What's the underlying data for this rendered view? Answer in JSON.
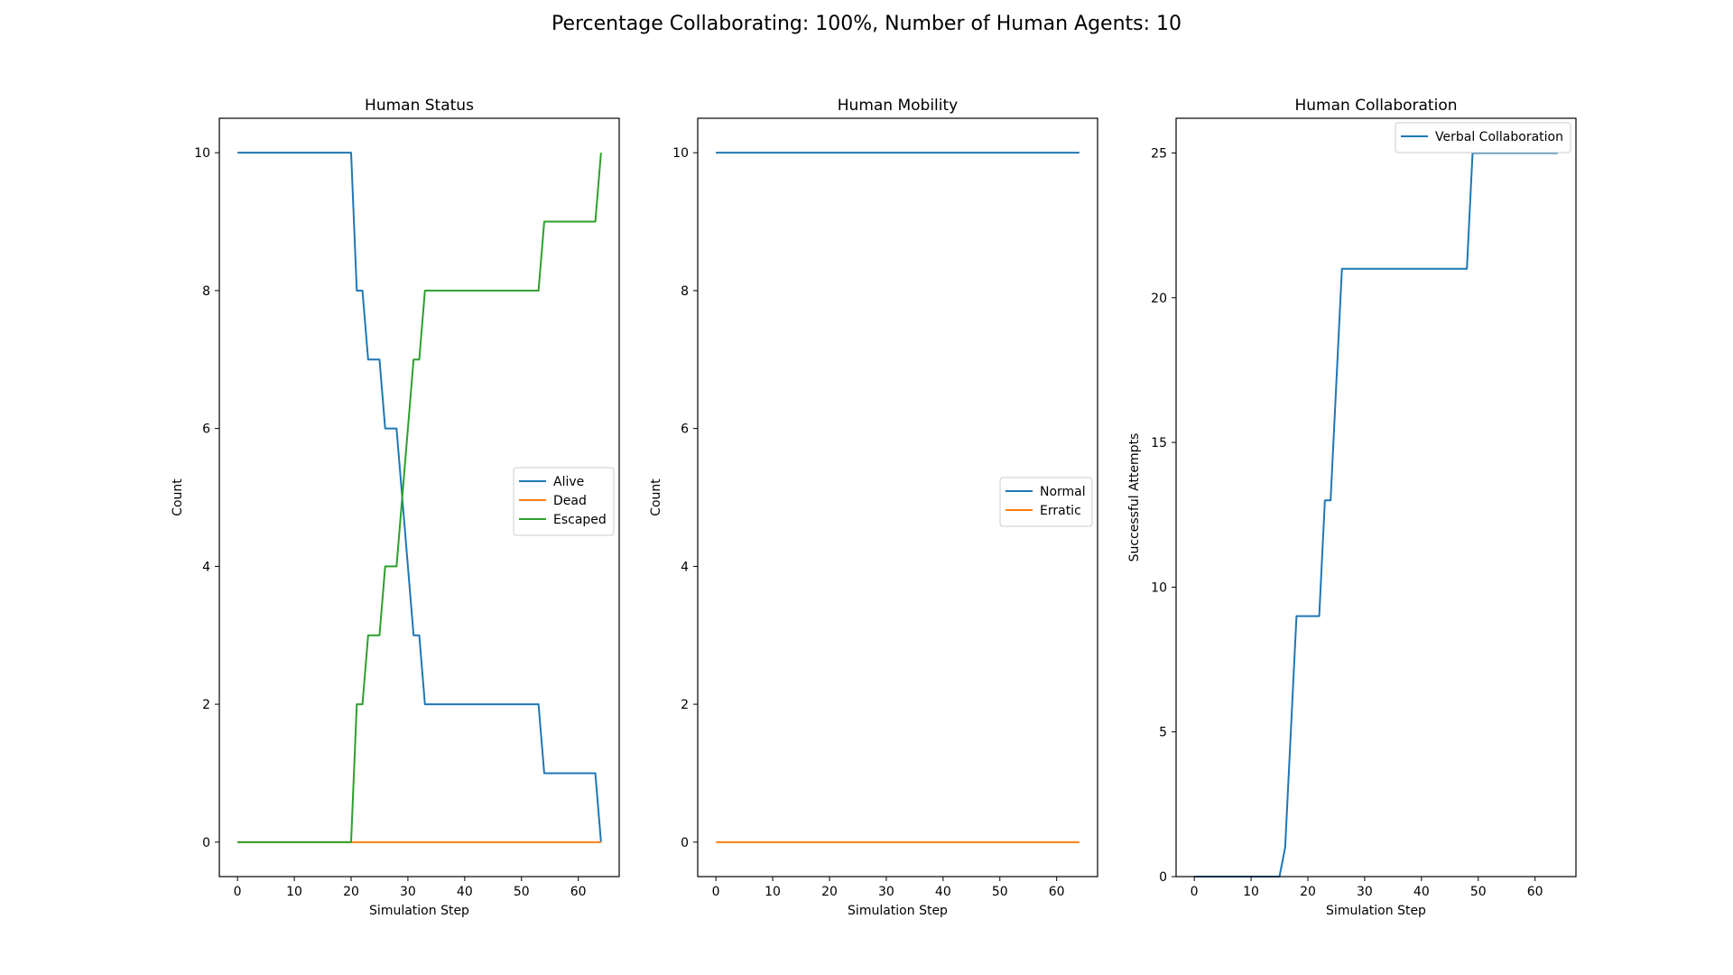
{
  "suptitle": "Percentage Collaborating: 100%, Number of Human Agents: 10",
  "colors": {
    "blue": "#1f77b4",
    "orange": "#ff7f0e",
    "green": "#2ca02c"
  },
  "chart_data": [
    {
      "type": "line",
      "title": "Human Status",
      "xlabel": "Simulation Step",
      "ylabel": "Count",
      "xlim": [
        -3.2,
        67.2
      ],
      "ylim": [
        -0.5,
        10.5
      ],
      "xticks": [
        0,
        10,
        20,
        30,
        40,
        50,
        60
      ],
      "yticks": [
        0,
        2,
        4,
        6,
        8,
        10
      ],
      "grid": false,
      "legend_position": "center-right",
      "series": [
        {
          "name": "Alive",
          "color": "#1f77b4",
          "x": [
            0,
            20,
            21,
            22,
            23,
            25,
            26,
            28,
            31,
            32,
            33,
            53,
            54,
            63,
            64
          ],
          "y": [
            10,
            10,
            8,
            8,
            7,
            7,
            6,
            6,
            3,
            3,
            2,
            2,
            1,
            1,
            0
          ]
        },
        {
          "name": "Dead",
          "color": "#ff7f0e",
          "x": [
            0,
            64
          ],
          "y": [
            0,
            0
          ]
        },
        {
          "name": "Escaped",
          "color": "#2ca02c",
          "x": [
            0,
            20,
            21,
            22,
            23,
            25,
            26,
            28,
            31,
            32,
            33,
            53,
            54,
            63,
            64
          ],
          "y": [
            0,
            0,
            2,
            2,
            3,
            3,
            4,
            4,
            7,
            7,
            8,
            8,
            9,
            9,
            10
          ]
        }
      ]
    },
    {
      "type": "line",
      "title": "Human Mobility",
      "xlabel": "Simulation Step",
      "ylabel": "Count",
      "xlim": [
        -3.2,
        67.2
      ],
      "ylim": [
        -0.5,
        10.5
      ],
      "xticks": [
        0,
        10,
        20,
        30,
        40,
        50,
        60
      ],
      "yticks": [
        0,
        2,
        4,
        6,
        8,
        10
      ],
      "grid": false,
      "legend_position": "center-right",
      "series": [
        {
          "name": "Normal",
          "color": "#1f77b4",
          "x": [
            0,
            64
          ],
          "y": [
            10,
            10
          ]
        },
        {
          "name": "Erratic",
          "color": "#ff7f0e",
          "x": [
            0,
            64
          ],
          "y": [
            0,
            0
          ]
        }
      ]
    },
    {
      "type": "line",
      "title": "Human Collaboration",
      "xlabel": "Simulation Step",
      "ylabel": "Successful Attempts",
      "xlim": [
        -3.2,
        67.2
      ],
      "ylim": [
        0,
        26.2
      ],
      "xticks": [
        0,
        10,
        20,
        30,
        40,
        50,
        60
      ],
      "yticks": [
        0,
        5,
        10,
        15,
        20,
        25
      ],
      "grid": false,
      "legend_position": "top-right",
      "series": [
        {
          "name": "Verbal Collaboration",
          "color": "#1f77b4",
          "x": [
            0,
            15,
            16,
            18,
            22,
            23,
            24,
            26,
            48,
            49,
            64
          ],
          "y": [
            0,
            0,
            1,
            9,
            9,
            13,
            13,
            21,
            21,
            25,
            25
          ]
        }
      ]
    }
  ]
}
